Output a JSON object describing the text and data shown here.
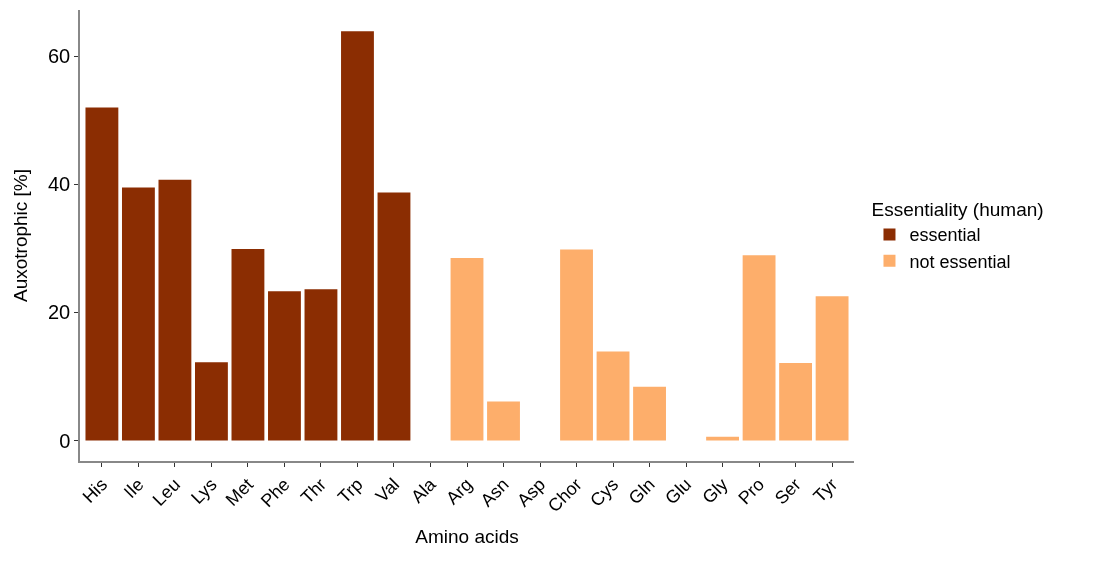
{
  "chart_data": {
    "type": "bar",
    "xlabel": "Amino acids",
    "ylabel": "Auxotrophic [%]",
    "legend_title": "Essentiality (human)",
    "legend": "right",
    "categories": [
      "His",
      "Ile",
      "Leu",
      "Lys",
      "Met",
      "Phe",
      "Thr",
      "Trp",
      "Val",
      "Ala",
      "Arg",
      "Asn",
      "Asp",
      "Chor",
      "Cys",
      "Gln",
      "Glu",
      "Gly",
      "Pro",
      "Ser",
      "Tyr"
    ],
    "series": [
      {
        "name": "essential",
        "color": "#8b2d02",
        "values": [
          52.0,
          39.5,
          40.7,
          12.2,
          29.9,
          23.3,
          23.6,
          63.9,
          38.7,
          null,
          null,
          null,
          null,
          null,
          null,
          null,
          null,
          null,
          null,
          null,
          null
        ]
      },
      {
        "name": "not essential",
        "color": "#fdae6b",
        "values": [
          null,
          null,
          null,
          null,
          null,
          null,
          null,
          null,
          null,
          0,
          28.5,
          6.1,
          0,
          29.8,
          13.9,
          8.4,
          0,
          0.6,
          28.9,
          12.1,
          22.5
        ]
      }
    ],
    "ylim": [
      -3.2,
      67.2
    ],
    "yticks": [
      0,
      20,
      40,
      60
    ]
  }
}
